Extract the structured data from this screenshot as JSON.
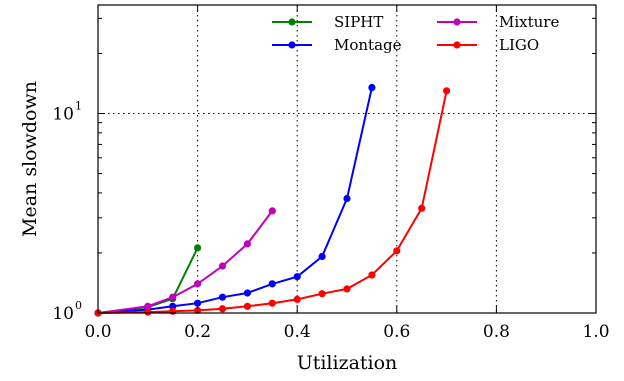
{
  "chart_data": {
    "type": "line",
    "title": "",
    "xlabel": "Utilization",
    "ylabel": "Mean slowdown",
    "xlim": [
      0.0,
      1.0
    ],
    "ylim": [
      1.0,
      35.0
    ],
    "y_scale": "log",
    "grid": "dotted, major ticks",
    "legend": {
      "placement": "top-right",
      "columns": 2
    },
    "x_tick_labels": [
      "0.0",
      "0.2",
      "0.4",
      "0.6",
      "0.8",
      "1.0"
    ],
    "x_ticks": [
      0.0,
      0.2,
      0.4,
      0.6,
      0.8,
      1.0
    ],
    "y_ticks": [
      {
        "value": 1,
        "base": "10",
        "exp": "0"
      },
      {
        "value": 10,
        "base": "10",
        "exp": "1"
      }
    ],
    "series": [
      {
        "name": "SIPHT",
        "color": "#008000",
        "x": [
          0.0,
          0.1,
          0.15,
          0.2
        ],
        "y": [
          1.0,
          1.07,
          1.18,
          2.12
        ]
      },
      {
        "name": "Montage",
        "color": "#0000ff",
        "x": [
          0.0,
          0.1,
          0.15,
          0.2,
          0.25,
          0.3,
          0.35,
          0.4,
          0.45,
          0.5,
          0.55
        ],
        "y": [
          1.0,
          1.04,
          1.08,
          1.12,
          1.2,
          1.26,
          1.4,
          1.52,
          1.92,
          3.75,
          13.5
        ]
      },
      {
        "name": "Mixture",
        "color": "#bf00bf",
        "x": [
          0.0,
          0.1,
          0.15,
          0.2,
          0.25,
          0.3,
          0.35
        ],
        "y": [
          1.0,
          1.08,
          1.2,
          1.4,
          1.72,
          2.22,
          3.25
        ]
      },
      {
        "name": "LIGO",
        "color": "#ff0000",
        "x": [
          0.0,
          0.1,
          0.15,
          0.2,
          0.25,
          0.3,
          0.35,
          0.4,
          0.45,
          0.5,
          0.55,
          0.6,
          0.65,
          0.7
        ],
        "y": [
          1.0,
          1.01,
          1.02,
          1.03,
          1.05,
          1.08,
          1.12,
          1.17,
          1.25,
          1.32,
          1.55,
          2.05,
          3.35,
          13.0
        ]
      }
    ]
  }
}
